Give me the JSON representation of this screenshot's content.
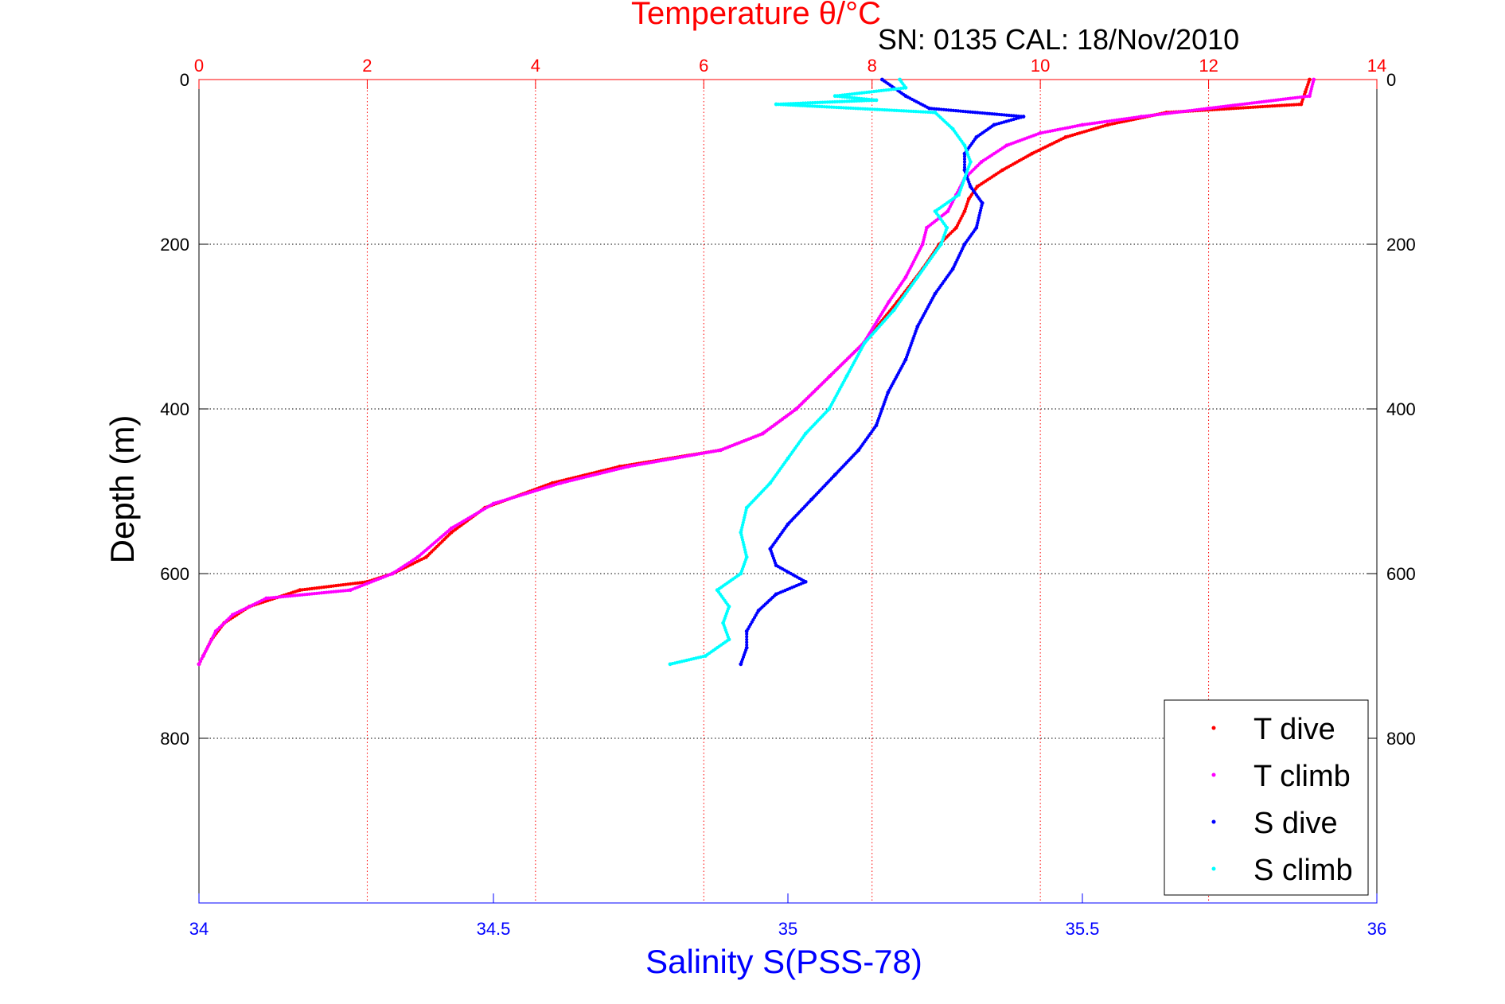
{
  "chart_data": {
    "type": "scatter",
    "title": "Temperature θ/°C",
    "subtitle": "SN: 0135  CAL: 18/Nov/2010",
    "xlabel_bottom": "Salinity S(PSS-78)",
    "xlabel_top": "Temperature θ/°C",
    "ylabel": "Depth (m)",
    "x_bottom": {
      "lim": [
        34,
        36
      ],
      "ticks": [
        34,
        34.5,
        35,
        35.5,
        36
      ],
      "tick_labels": [
        "34",
        "34.5",
        "35",
        "35.5",
        "36"
      ],
      "color": "#0000ff"
    },
    "x_top": {
      "lim": [
        0,
        14
      ],
      "ticks": [
        0,
        2,
        4,
        6,
        8,
        10,
        12,
        14
      ],
      "tick_labels": [
        "0",
        "2",
        "4",
        "6",
        "8",
        "10",
        "12",
        "14"
      ],
      "color": "#ff0000"
    },
    "y": {
      "lim": [
        0,
        1000
      ],
      "reversed": true,
      "ticks": [
        0,
        200,
        400,
        600,
        800
      ],
      "tick_labels": [
        "0",
        "200",
        "400",
        "600",
        "800"
      ]
    },
    "grid": true,
    "legend": {
      "position": "bottom-right",
      "entries": [
        {
          "label": "T dive",
          "color": "#ff0000"
        },
        {
          "label": "T climb",
          "color": "#ff00ff"
        },
        {
          "label": "S dive",
          "color": "#0000ff"
        },
        {
          "label": "S climb",
          "color": "#00ffff"
        }
      ]
    },
    "series": [
      {
        "name": "T dive",
        "axis": "temperature",
        "color": "#ff0000",
        "points": [
          [
            13.2,
            0
          ],
          [
            13.15,
            15
          ],
          [
            13.1,
            30
          ],
          [
            11.5,
            40
          ],
          [
            10.8,
            55
          ],
          [
            10.3,
            70
          ],
          [
            9.9,
            90
          ],
          [
            9.55,
            110
          ],
          [
            9.25,
            130
          ],
          [
            9.15,
            145
          ],
          [
            9.1,
            160
          ],
          [
            9.0,
            180
          ],
          [
            8.8,
            200
          ],
          [
            8.6,
            230
          ],
          [
            8.3,
            270
          ],
          [
            7.9,
            320
          ],
          [
            7.5,
            360
          ],
          [
            7.1,
            400
          ],
          [
            6.7,
            430
          ],
          [
            6.2,
            450
          ],
          [
            5.0,
            470
          ],
          [
            4.2,
            490
          ],
          [
            3.4,
            520
          ],
          [
            3.0,
            550
          ],
          [
            2.7,
            580
          ],
          [
            2.3,
            600
          ],
          [
            2.0,
            610
          ],
          [
            1.2,
            620
          ],
          [
            0.6,
            640
          ],
          [
            0.3,
            660
          ],
          [
            0.15,
            680
          ],
          [
            0.05,
            700
          ],
          [
            0.0,
            710
          ]
        ]
      },
      {
        "name": "T climb",
        "axis": "temperature",
        "color": "#ff00ff",
        "points": [
          [
            13.25,
            0
          ],
          [
            13.2,
            20
          ],
          [
            12.0,
            35
          ],
          [
            11.2,
            45
          ],
          [
            10.5,
            55
          ],
          [
            10.0,
            65
          ],
          [
            9.6,
            80
          ],
          [
            9.3,
            100
          ],
          [
            9.1,
            120
          ],
          [
            9.0,
            140
          ],
          [
            8.9,
            160
          ],
          [
            8.65,
            180
          ],
          [
            8.6,
            200
          ],
          [
            8.4,
            240
          ],
          [
            8.2,
            270
          ],
          [
            7.9,
            320
          ],
          [
            7.5,
            360
          ],
          [
            7.1,
            400
          ],
          [
            6.7,
            430
          ],
          [
            6.2,
            450
          ],
          [
            5.1,
            470
          ],
          [
            4.3,
            490
          ],
          [
            3.5,
            515
          ],
          [
            3.0,
            545
          ],
          [
            2.6,
            580
          ],
          [
            2.3,
            600
          ],
          [
            1.8,
            620
          ],
          [
            0.8,
            630
          ],
          [
            0.4,
            650
          ],
          [
            0.2,
            670
          ],
          [
            0.05,
            700
          ],
          [
            0.0,
            710
          ]
        ]
      },
      {
        "name": "S dive",
        "axis": "salinity",
        "color": "#0000ff",
        "points": [
          [
            35.16,
            0
          ],
          [
            35.2,
            20
          ],
          [
            35.24,
            35
          ],
          [
            35.4,
            45
          ],
          [
            35.35,
            55
          ],
          [
            35.32,
            70
          ],
          [
            35.3,
            90
          ],
          [
            35.3,
            110
          ],
          [
            35.31,
            130
          ],
          [
            35.33,
            150
          ],
          [
            35.32,
            180
          ],
          [
            35.3,
            200
          ],
          [
            35.28,
            230
          ],
          [
            35.25,
            260
          ],
          [
            35.22,
            300
          ],
          [
            35.2,
            340
          ],
          [
            35.17,
            380
          ],
          [
            35.15,
            420
          ],
          [
            35.12,
            450
          ],
          [
            35.08,
            480
          ],
          [
            35.04,
            510
          ],
          [
            35.0,
            540
          ],
          [
            34.97,
            570
          ],
          [
            34.98,
            590
          ],
          [
            35.03,
            610
          ],
          [
            34.98,
            625
          ],
          [
            34.95,
            645
          ],
          [
            34.93,
            670
          ],
          [
            34.93,
            690
          ],
          [
            34.92,
            710
          ]
        ]
      },
      {
        "name": "S climb",
        "axis": "salinity",
        "color": "#00ffff",
        "points": [
          [
            35.19,
            0
          ],
          [
            35.2,
            10
          ],
          [
            35.08,
            20
          ],
          [
            35.15,
            25
          ],
          [
            34.98,
            30
          ],
          [
            35.25,
            40
          ],
          [
            35.28,
            60
          ],
          [
            35.3,
            80
          ],
          [
            35.31,
            100
          ],
          [
            35.3,
            120
          ],
          [
            35.29,
            140
          ],
          [
            35.25,
            160
          ],
          [
            35.27,
            180
          ],
          [
            35.26,
            200
          ],
          [
            35.22,
            240
          ],
          [
            35.18,
            280
          ],
          [
            35.13,
            320
          ],
          [
            35.1,
            360
          ],
          [
            35.07,
            400
          ],
          [
            35.03,
            430
          ],
          [
            35.0,
            460
          ],
          [
            34.97,
            490
          ],
          [
            34.93,
            520
          ],
          [
            34.92,
            550
          ],
          [
            34.93,
            580
          ],
          [
            34.92,
            600
          ],
          [
            34.88,
            620
          ],
          [
            34.9,
            640
          ],
          [
            34.89,
            660
          ],
          [
            34.9,
            680
          ],
          [
            34.86,
            700
          ],
          [
            34.8,
            710
          ]
        ]
      }
    ]
  }
}
